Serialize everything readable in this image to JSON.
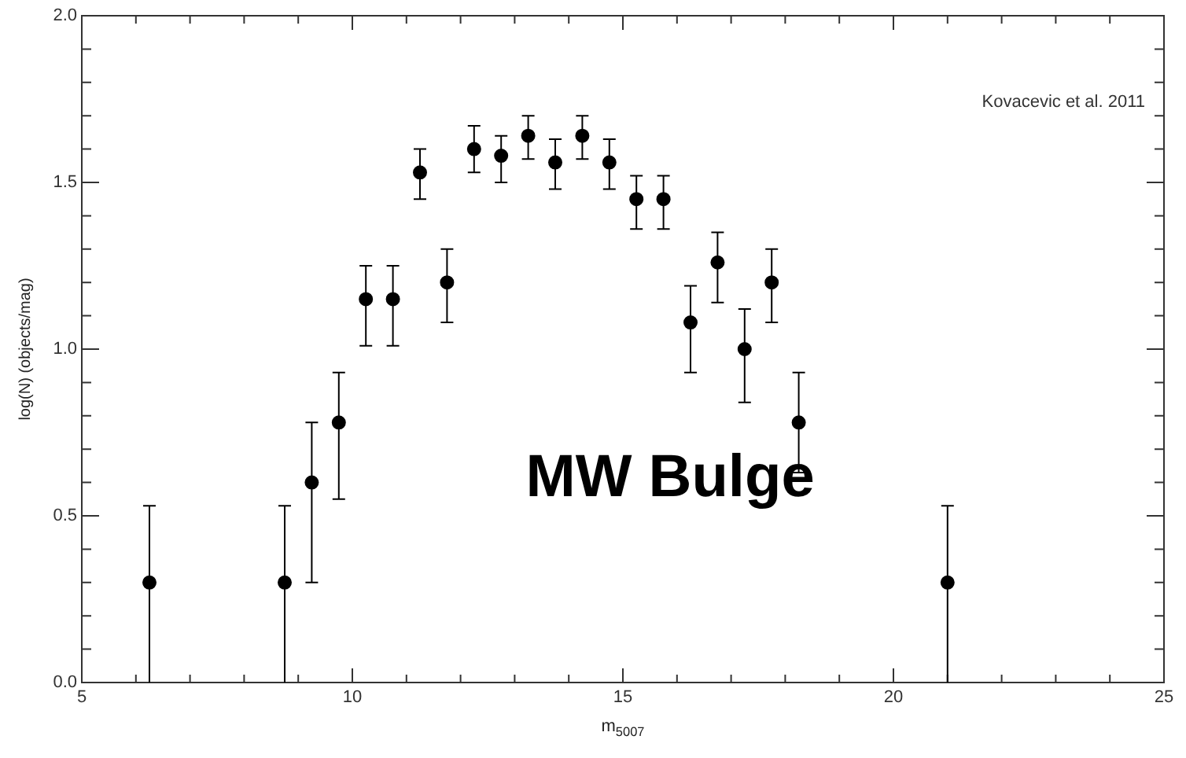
{
  "chart_data": {
    "type": "scatter",
    "xlabel": "m$_{5007}$",
    "ylabel": "log(N) (objects/mag)",
    "annotations": [
      "Kovacevic et al. 2011",
      "MW Bulge"
    ],
    "x": [
      6.25,
      8.75,
      9.25,
      9.75,
      10.25,
      10.75,
      11.25,
      11.75,
      12.25,
      12.75,
      13.25,
      13.75,
      14.25,
      14.75,
      15.25,
      15.75,
      16.25,
      16.75,
      17.25,
      17.75,
      18.25,
      21.0
    ],
    "series": [
      {
        "color": "#000000",
        "values": [
          0.3,
          0.3,
          0.6,
          0.78,
          1.15,
          1.15,
          1.53,
          1.2,
          1.6,
          1.58,
          1.64,
          1.56,
          1.64,
          1.56,
          1.45,
          1.45,
          1.08,
          1.26,
          1.0,
          1.2,
          0.78,
          0.3
        ],
        "errors": [
          [
            0,
            0.53
          ],
          [
            0,
            0.53
          ],
          [
            0.3,
            0.78
          ],
          [
            0.55,
            0.93
          ],
          [
            1.01,
            1.25
          ],
          [
            1.01,
            1.25
          ],
          [
            1.45,
            1.6
          ],
          [
            1.08,
            1.3
          ],
          [
            1.53,
            1.67
          ],
          [
            1.5,
            1.64
          ],
          [
            1.57,
            1.7
          ],
          [
            1.48,
            1.63
          ],
          [
            1.57,
            1.7
          ],
          [
            1.48,
            1.63
          ],
          [
            1.36,
            1.52
          ],
          [
            1.36,
            1.52
          ],
          [
            0.93,
            1.19
          ],
          [
            1.14,
            1.35
          ],
          [
            0.84,
            1.12
          ],
          [
            1.08,
            1.3
          ],
          [
            0.63,
            0.93
          ],
          [
            0,
            0.53
          ]
        ]
      }
    ],
    "marker": "circle",
    "grid": false,
    "legend": false,
    "xlim": [
      5,
      25
    ],
    "xticks": [
      5,
      {
        "value": 6,
        "label": null
      },
      {
        "value": 7,
        "label": null
      },
      {
        "value": 8,
        "label": null
      },
      {
        "value": 9,
        "label": null
      },
      10,
      {
        "value": 11,
        "label": null
      },
      {
        "value": 12,
        "label": null
      },
      {
        "value": 13,
        "label": null
      },
      {
        "value": 14,
        "label": null
      },
      15,
      {
        "value": 16,
        "label": null
      },
      {
        "value": 17,
        "label": null
      },
      {
        "value": 18,
        "label": null
      },
      {
        "value": 19,
        "label": null
      },
      20,
      {
        "value": 21,
        "label": null
      },
      {
        "value": 22,
        "label": null
      },
      {
        "value": 23,
        "label": null
      },
      {
        "value": 24,
        "label": null
      },
      25
    ],
    "ylim": [
      0,
      2.0
    ],
    "yticks": [
      {
        "value": 0,
        "label": "0.0"
      },
      {
        "value": 0.1,
        "label": null
      },
      {
        "value": 0.2,
        "label": null
      },
      {
        "value": 0.3,
        "label": null
      },
      {
        "value": 0.4,
        "label": null
      },
      {
        "value": 0.5,
        "label": "0.5"
      },
      {
        "value": 0.6,
        "label": null
      },
      {
        "value": 0.7,
        "label": null
      },
      {
        "value": 0.8,
        "label": null
      },
      {
        "value": 0.9,
        "label": null
      },
      {
        "value": 1.0,
        "label": "1.0"
      },
      {
        "value": 1.1,
        "label": null
      },
      {
        "value": 1.2,
        "label": null
      },
      {
        "value": 1.3,
        "label": null
      },
      {
        "value": 1.4,
        "label": null
      },
      {
        "value": 1.5,
        "label": "1.5"
      },
      {
        "value": 1.6,
        "label": null
      },
      {
        "value": 1.7,
        "label": null
      },
      {
        "value": 1.8,
        "label": null
      },
      {
        "value": 1.9,
        "label": null
      },
      {
        "value": 2.0,
        "label": "2.0"
      }
    ]
  }
}
